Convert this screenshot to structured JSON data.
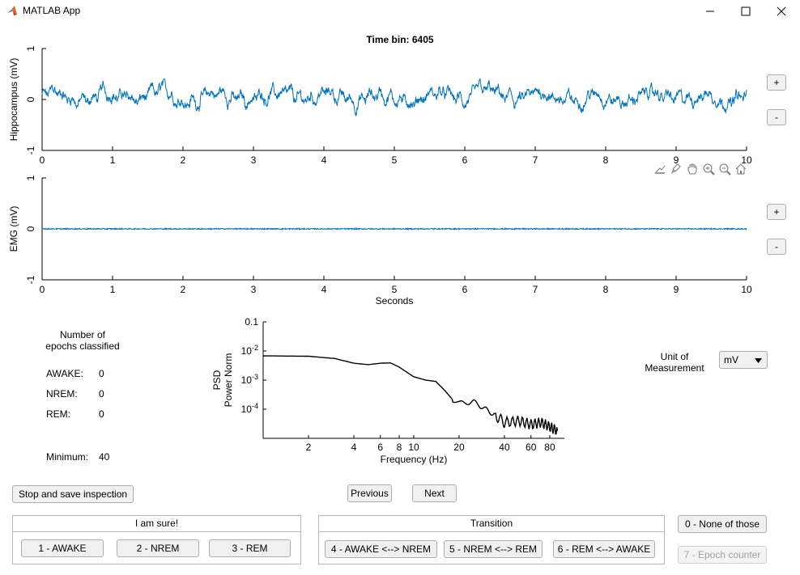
{
  "window": {
    "title": "MATLAB App"
  },
  "plot_title": "Time bin: 6405",
  "chart_data": [
    {
      "type": "line",
      "ylabel": "Hippocampus (mV)",
      "xlabel": "",
      "xlim": [
        0,
        10
      ],
      "ylim": [
        -1,
        1
      ],
      "xticks": [
        "0",
        "1",
        "2",
        "3",
        "4",
        "5",
        "6",
        "7",
        "8",
        "9",
        "10"
      ],
      "yticks": [
        "-1",
        "0",
        "1"
      ],
      "series": [
        {
          "color": "#0072bd",
          "amplitude_approx": 0.3,
          "values_summary": "noisy signal around 0"
        }
      ]
    },
    {
      "type": "line",
      "ylabel": "EMG (mV)",
      "xlabel": "Seconds",
      "xlim": [
        0,
        10
      ],
      "ylim": [
        -1,
        1
      ],
      "xticks": [
        "0",
        "1",
        "2",
        "3",
        "4",
        "5",
        "6",
        "7",
        "8",
        "9",
        "10"
      ],
      "yticks": [
        "-1",
        "0",
        "1"
      ],
      "series": [
        {
          "color": "#0072bd",
          "amplitude_approx": 0.01,
          "values_summary": "flat signal near 0"
        }
      ]
    },
    {
      "type": "line",
      "ylabel": "PSD\nPower Norm",
      "xlabel": "Frequency (Hz)",
      "xscale": "log",
      "yscale": "log",
      "xlim": [
        1,
        100
      ],
      "ylim": [
        1e-05,
        0.1
      ],
      "xticks": [
        "2",
        "4",
        "6",
        "8",
        "10",
        "20",
        "40",
        "60",
        "80"
      ],
      "yticks": [
        "0.1",
        "10^-2",
        "10^-3",
        "10^-4"
      ],
      "series": [
        {
          "color": "#000000",
          "x": [
            1,
            2,
            3,
            4,
            5,
            6,
            7,
            8,
            10,
            12,
            14,
            16,
            18,
            20,
            25,
            30,
            35,
            40,
            50,
            60,
            70,
            80,
            90
          ],
          "y": [
            0.0068,
            0.0066,
            0.0055,
            0.0038,
            0.0034,
            0.0038,
            0.0039,
            0.0028,
            0.0013,
            0.001,
            0.0009,
            0.00045,
            0.00022,
            0.00016,
            0.00018,
            0.0001,
            6e-05,
            3.5e-05,
            4e-05,
            3e-05,
            3.5e-05,
            2.5e-05,
            1.8e-05
          ]
        }
      ]
    }
  ],
  "axes_buttons": {
    "plus": "+",
    "minus": "-"
  },
  "summary": {
    "heading_line1": "Number of",
    "heading_line2": "epochs classified",
    "awake_label": "AWAKE:",
    "awake_value": "0",
    "nrem_label": "NREM:",
    "nrem_value": "0",
    "rem_label": "REM:",
    "rem_value": "0",
    "minimum_label": "Minimum:",
    "minimum_value": "40"
  },
  "unit": {
    "label_line1": "Unit of",
    "label_line2": "Measurement",
    "selected": "mV"
  },
  "buttons": {
    "stop_save": "Stop and save inspection",
    "previous": "Previous",
    "next": "Next",
    "none": "0 - None of those",
    "epoch_counter": "7 - Epoch counter"
  },
  "sure_panel": {
    "title": "I am sure!",
    "awake": "1 - AWAKE",
    "nrem": "2 - NREM",
    "rem": "3 - REM"
  },
  "transition_panel": {
    "title": "Transition",
    "awake_nrem": "4 - AWAKE <--> NREM",
    "nrem_rem": "5 - NREM <--> REM",
    "rem_awake": "6 - REM <--> AWAKE"
  },
  "toolbar_icons": [
    "export-icon",
    "brush-icon",
    "pan-icon",
    "zoom-in-icon",
    "zoom-out-icon",
    "home-icon"
  ]
}
